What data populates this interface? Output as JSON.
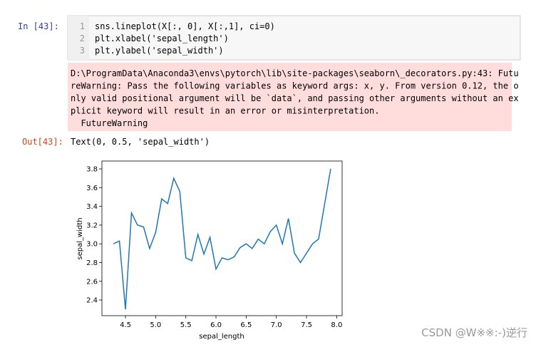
{
  "notebook": {
    "input_prompt": "In  [43]:",
    "code": {
      "line_numbers": [
        "1",
        "2",
        "3"
      ],
      "lines": [
        "sns.lineplot(X[:, 0], X[:,1], ci=0)",
        "plt.xlabel('sepal_length')",
        "plt.ylabel('sepal_width')"
      ]
    },
    "warning": [
      "D:\\ProgramData\\Anaconda3\\envs\\pytorch\\lib\\site-packages\\seaborn\\_decorators.py:43: Futu",
      "reWarning: Pass the following variables as keyword args: x, y. From version 0.12, the o",
      "nly valid positional argument will be `data`, and passing other arguments without an ex",
      "plicit keyword will result in an error or misinterpretation.",
      "  FutureWarning"
    ],
    "output_prompt": "Out[43]:",
    "output_text": "Text(0, 0.5, 'sepal_width')",
    "watermark": "CSDN @W※※:-)逆行"
  },
  "chart_data": {
    "type": "line",
    "x": [
      4.3,
      4.4,
      4.5,
      4.6,
      4.7,
      4.8,
      4.9,
      5.0,
      5.1,
      5.2,
      5.3,
      5.4,
      5.5,
      5.6,
      5.7,
      5.8,
      5.9,
      6.0,
      6.1,
      6.2,
      6.3,
      6.4,
      6.5,
      6.6,
      6.7,
      6.8,
      6.9,
      7.0,
      7.1,
      7.2,
      7.3,
      7.4,
      7.6,
      7.7,
      7.9
    ],
    "values": [
      3.0,
      3.03,
      2.3,
      3.33,
      3.2,
      3.18,
      2.95,
      3.12,
      3.48,
      3.43,
      3.7,
      3.56,
      2.85,
      2.82,
      3.1,
      2.89,
      3.07,
      2.73,
      2.85,
      2.83,
      2.86,
      2.96,
      3.0,
      2.95,
      3.05,
      3.0,
      3.13,
      3.2,
      3.0,
      3.27,
      2.9,
      2.8,
      3.0,
      3.05,
      3.8
    ],
    "color": "#1f77b4",
    "xlabel": "sepal_length",
    "ylabel": "sepal_width",
    "xlim": [
      4.11,
      8.09
    ],
    "ylim": [
      2.233,
      3.884
    ],
    "xticks": [
      4.5,
      {
        "value": 5,
        "label": "5.0"
      },
      5.5,
      {
        "value": 6,
        "label": "6.0"
      },
      6.5,
      {
        "value": 7,
        "label": "7.0"
      },
      7.5,
      {
        "value": 8,
        "label": "8.0"
      }
    ],
    "yticks": [
      2.4,
      2.6,
      2.8,
      {
        "value": 3,
        "label": "3.0"
      },
      3.2,
      3.4,
      3.6,
      3.8
    ]
  }
}
